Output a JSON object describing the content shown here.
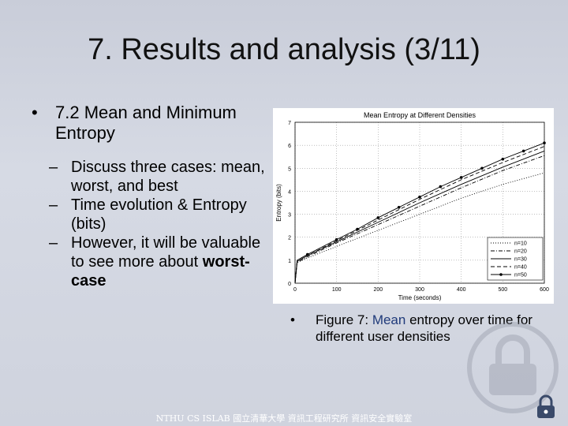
{
  "slide": {
    "title": "7. Results and analysis (3/11)",
    "bullet": "7.2  Mean and Minimum Entropy",
    "subs": [
      "Discuss three cases: mean, worst, and best",
      "Time evolution & Entropy (bits)"
    ],
    "sub3_prefix": "However, it will be valuable to see more about ",
    "sub3_bold": "worst-case",
    "caption_prefix": "Figure 7:  ",
    "caption_highlight": "Mean",
    "caption_suffix": " entropy over time for different user densities",
    "footer": "NTHU CS ISLAB 國立清華大學 資訊工程研究所 資訊安全實驗室"
  },
  "chart_data": {
    "type": "line",
    "title": "Mean Entropy at Different Densities",
    "xlabel": "Time (seconds)",
    "ylabel": "Entropy (bits)",
    "xlim": [
      0,
      600
    ],
    "ylim": [
      0,
      7
    ],
    "xticks": [
      0,
      100,
      200,
      300,
      400,
      500,
      600
    ],
    "yticks": [
      0,
      1,
      2,
      3,
      4,
      5,
      6,
      7
    ],
    "grid": true,
    "legend_position": "lower-right",
    "series": [
      {
        "name": "n=10",
        "style": "dotted",
        "x": [
          0,
          5,
          30,
          100,
          200,
          300,
          400,
          500,
          600
        ],
        "y": [
          0,
          0.9,
          1.1,
          1.6,
          2.3,
          3.0,
          3.7,
          4.3,
          4.8
        ]
      },
      {
        "name": "n=20",
        "style": "dash-dot",
        "x": [
          0,
          5,
          30,
          100,
          200,
          300,
          400,
          500,
          600
        ],
        "y": [
          0,
          0.9,
          1.15,
          1.75,
          2.55,
          3.35,
          4.15,
          4.9,
          5.55
        ]
      },
      {
        "name": "n=30",
        "style": "solid",
        "x": [
          0,
          5,
          30,
          100,
          200,
          300,
          400,
          500,
          600
        ],
        "y": [
          0,
          0.95,
          1.2,
          1.8,
          2.65,
          3.5,
          4.3,
          5.05,
          5.75
        ]
      },
      {
        "name": "n=40",
        "style": "dashed",
        "x": [
          0,
          5,
          30,
          100,
          200,
          300,
          400,
          500,
          600
        ],
        "y": [
          0,
          0.95,
          1.2,
          1.85,
          2.75,
          3.65,
          4.5,
          5.25,
          5.95
        ]
      },
      {
        "name": "n=50",
        "style": "dot-marker",
        "x": [
          0,
          5,
          30,
          100,
          150,
          200,
          250,
          300,
          350,
          400,
          450,
          500,
          550,
          600
        ],
        "y": [
          0,
          1.0,
          1.25,
          1.9,
          2.35,
          2.85,
          3.3,
          3.75,
          4.2,
          4.6,
          5.0,
          5.4,
          5.75,
          6.1
        ]
      }
    ]
  }
}
